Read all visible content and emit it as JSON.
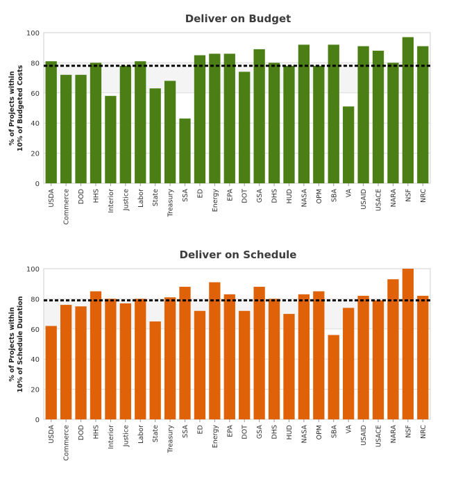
{
  "chart_data": [
    {
      "type": "bar",
      "title": "Deliver on Budget",
      "ylabel_lines": [
        "% of Projects within",
        "10% of Budgeted Costs"
      ],
      "xlabel": "",
      "ylim": [
        0,
        100
      ],
      "yticks": [
        0,
        20,
        40,
        60,
        80,
        100
      ],
      "target_line": 78,
      "band": [
        60,
        80
      ],
      "bar_color": "#4b7f15",
      "categories": [
        "USDA",
        "Commerce",
        "DOD",
        "HHS",
        "Interior",
        "Justice",
        "Labor",
        "State",
        "Treasury",
        "SSA",
        "ED",
        "Energy",
        "EPA",
        "DOT",
        "GSA",
        "DHS",
        "HUD",
        "NASA",
        "OPM",
        "SBA",
        "VA",
        "USAID",
        "USACE",
        "NARA",
        "NSF",
        "NRC"
      ],
      "values": [
        81,
        72,
        72,
        80,
        58,
        78,
        81,
        63,
        68,
        43,
        85,
        86,
        86,
        74,
        89,
        80,
        78,
        92,
        78,
        92,
        51,
        91,
        88,
        80,
        97,
        91
      ]
    },
    {
      "type": "bar",
      "title": "Deliver on Schedule",
      "ylabel_lines": [
        "% of Projects within",
        "10% of Schedule Duration"
      ],
      "xlabel": "",
      "ylim": [
        0,
        100
      ],
      "yticks": [
        0,
        20,
        40,
        60,
        80,
        100
      ],
      "target_line": 79,
      "band": [
        60,
        80
      ],
      "bar_color": "#df6208",
      "categories": [
        "USDA",
        "Commerce",
        "DOD",
        "HHS",
        "Interior",
        "Justice",
        "Labor",
        "State",
        "Treasury",
        "SSA",
        "ED",
        "Energy",
        "EPA",
        "DOT",
        "GSA",
        "DHS",
        "HUD",
        "NASA",
        "OPM",
        "SBA",
        "VA",
        "USAID",
        "USACE",
        "NARA",
        "NSF",
        "NRC"
      ],
      "values": [
        62,
        76,
        75,
        85,
        80,
        77,
        80,
        65,
        81,
        88,
        72,
        91,
        83,
        72,
        88,
        80,
        70,
        83,
        85,
        56,
        74,
        82,
        79,
        93,
        100,
        82
      ]
    }
  ]
}
